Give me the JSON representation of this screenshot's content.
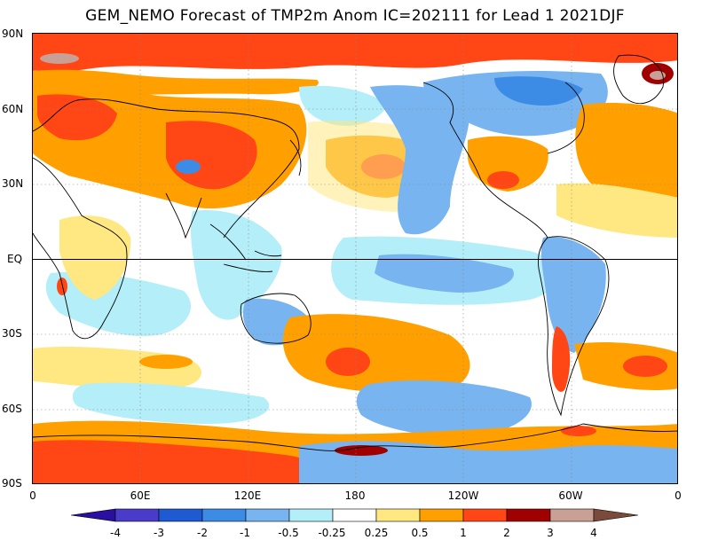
{
  "title": "GEM_NEMO Forecast of TMP2m Anom IC=202111 for Lead 1 2021DJF",
  "lat_labels": [
    "90N",
    "60N",
    "30N",
    "EQ",
    "30S",
    "60S",
    "90S"
  ],
  "lon_labels": [
    "0",
    "60E",
    "120E",
    "180",
    "120W",
    "60W",
    "0"
  ],
  "colorbar": {
    "labels": [
      "-4",
      "-3",
      "-2",
      "-1",
      "-0.5",
      "-0.25",
      "0.25",
      "0.5",
      "1",
      "2",
      "3",
      "4"
    ],
    "colors": [
      "#2a0fa0",
      "#4a3cc8",
      "#1e5ad2",
      "#3c8ce6",
      "#78b4f0",
      "#b4eef8",
      "#ffffff",
      "#ffe882",
      "#ffa000",
      "#ff4614",
      "#a00000",
      "#c8a096",
      "#7a4a3a"
    ]
  },
  "colors": {
    "ocean_neutral": "#ffffff",
    "warm_light": "#ffe882",
    "warm": "#ffa000",
    "warm_strong": "#ff4614",
    "warm_extreme": "#a00000",
    "cool_light": "#b4eef8",
    "cool": "#78b4f0",
    "cool_strong": "#3c8ce6"
  }
}
